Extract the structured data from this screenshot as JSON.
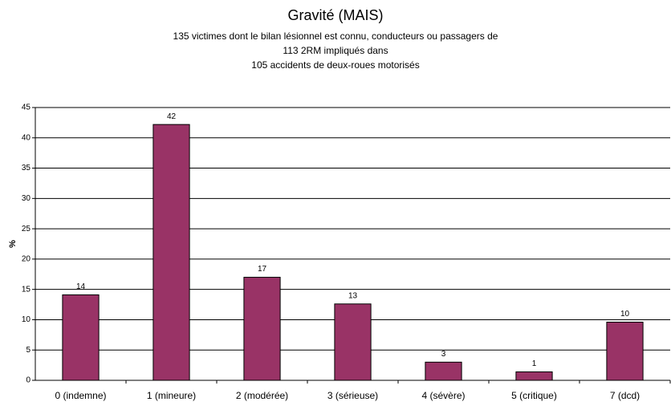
{
  "chart_data": {
    "type": "bar",
    "title": "Gravité (MAIS)",
    "subtitle": [
      "135 victimes dont le bilan lésionnel est connu, conducteurs ou passagers de",
      "113 2RM impliqués dans",
      "105 accidents de deux-roues motorisés"
    ],
    "y_label": "%",
    "categories": [
      "0 (indemne)",
      "1 (mineure)",
      "2 (modérée)",
      "3 (sérieuse)",
      "4 (sévère)",
      "5 (critique)",
      "7 (dcd)"
    ],
    "values": [
      14.1,
      42.2,
      17.0,
      12.6,
      3.0,
      1.4,
      9.6
    ],
    "value_labels": [
      "14",
      "42",
      "17",
      "13",
      "3",
      "1",
      "10"
    ],
    "color": "#993366",
    "ylim": [
      0,
      45
    ],
    "yticks": [
      0,
      5,
      10,
      15,
      20,
      25,
      30,
      35,
      40,
      45
    ],
    "grid": true
  }
}
